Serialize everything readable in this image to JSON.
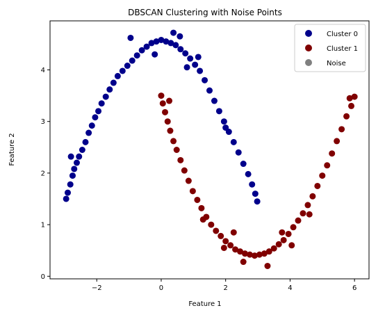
{
  "chart_data": {
    "type": "scatter",
    "title": "DBSCAN Clustering with Noise Points",
    "xlabel": "Feature 1",
    "ylabel": "Feature 2",
    "xlim": [
      -3.45,
      6.45
    ],
    "ylim": [
      -0.05,
      4.95
    ],
    "xticks": [
      -2,
      0,
      2,
      4,
      6
    ],
    "yticks": [
      0,
      1,
      2,
      3,
      4
    ],
    "grid": false,
    "legend_position": "top-right",
    "series": [
      {
        "name": "Cluster 0",
        "color": "#00008b",
        "shape": "upper-arc",
        "points": [
          [
            -2.95,
            1.5
          ],
          [
            -2.9,
            1.62
          ],
          [
            -2.82,
            1.78
          ],
          [
            -2.75,
            1.95
          ],
          [
            -2.7,
            2.08
          ],
          [
            -2.62,
            2.2
          ],
          [
            -2.55,
            2.32
          ],
          [
            -2.45,
            2.45
          ],
          [
            -2.35,
            2.6
          ],
          [
            -2.25,
            2.78
          ],
          [
            -2.15,
            2.92
          ],
          [
            -2.05,
            3.08
          ],
          [
            -1.95,
            3.2
          ],
          [
            -1.85,
            3.35
          ],
          [
            -1.72,
            3.48
          ],
          [
            -1.6,
            3.62
          ],
          [
            -1.48,
            3.75
          ],
          [
            -1.35,
            3.88
          ],
          [
            -1.2,
            3.98
          ],
          [
            -1.05,
            4.08
          ],
          [
            -0.9,
            4.18
          ],
          [
            -0.75,
            4.28
          ],
          [
            -0.6,
            4.38
          ],
          [
            -0.45,
            4.45
          ],
          [
            -0.3,
            4.52
          ],
          [
            -0.15,
            4.55
          ],
          [
            0.0,
            4.58
          ],
          [
            0.15,
            4.55
          ],
          [
            0.3,
            4.52
          ],
          [
            0.45,
            4.48
          ],
          [
            0.6,
            4.4
          ],
          [
            0.75,
            4.32
          ],
          [
            0.9,
            4.22
          ],
          [
            1.05,
            4.1
          ],
          [
            1.2,
            3.98
          ],
          [
            1.35,
            3.8
          ],
          [
            1.5,
            3.6
          ],
          [
            1.65,
            3.4
          ],
          [
            1.8,
            3.2
          ],
          [
            1.95,
            3.0
          ],
          [
            2.1,
            2.8
          ],
          [
            2.25,
            2.6
          ],
          [
            2.4,
            2.4
          ],
          [
            2.55,
            2.18
          ],
          [
            2.7,
            1.98
          ],
          [
            2.82,
            1.78
          ],
          [
            2.92,
            1.6
          ],
          [
            2.98,
            1.45
          ],
          [
            -0.95,
            4.62
          ],
          [
            0.38,
            4.72
          ],
          [
            0.58,
            4.65
          ],
          [
            -2.8,
            2.32
          ],
          [
            1.15,
            4.25
          ],
          [
            2.0,
            2.88
          ],
          [
            -0.2,
            4.3
          ],
          [
            0.8,
            4.05
          ]
        ]
      },
      {
        "name": "Cluster 1",
        "color": "#800000",
        "shape": "lower-arc",
        "points": [
          [
            0.0,
            3.5
          ],
          [
            0.05,
            3.35
          ],
          [
            0.12,
            3.18
          ],
          [
            0.2,
            3.0
          ],
          [
            0.28,
            2.82
          ],
          [
            0.38,
            2.62
          ],
          [
            0.48,
            2.45
          ],
          [
            0.6,
            2.25
          ],
          [
            0.72,
            2.05
          ],
          [
            0.85,
            1.85
          ],
          [
            0.98,
            1.65
          ],
          [
            1.12,
            1.48
          ],
          [
            1.25,
            1.32
          ],
          [
            1.4,
            1.15
          ],
          [
            1.55,
            1.0
          ],
          [
            1.7,
            0.88
          ],
          [
            1.85,
            0.78
          ],
          [
            2.0,
            0.68
          ],
          [
            2.15,
            0.6
          ],
          [
            2.3,
            0.52
          ],
          [
            2.45,
            0.48
          ],
          [
            2.6,
            0.44
          ],
          [
            2.75,
            0.42
          ],
          [
            2.9,
            0.4
          ],
          [
            3.05,
            0.42
          ],
          [
            3.2,
            0.44
          ],
          [
            3.35,
            0.48
          ],
          [
            3.5,
            0.54
          ],
          [
            3.65,
            0.62
          ],
          [
            3.8,
            0.7
          ],
          [
            3.95,
            0.82
          ],
          [
            4.1,
            0.95
          ],
          [
            4.25,
            1.08
          ],
          [
            4.4,
            1.22
          ],
          [
            4.55,
            1.38
          ],
          [
            4.7,
            1.55
          ],
          [
            4.85,
            1.75
          ],
          [
            5.0,
            1.95
          ],
          [
            5.15,
            2.15
          ],
          [
            5.3,
            2.38
          ],
          [
            5.45,
            2.62
          ],
          [
            5.6,
            2.85
          ],
          [
            5.75,
            3.1
          ],
          [
            5.9,
            3.3
          ],
          [
            6.0,
            3.48
          ],
          [
            1.95,
            0.55
          ],
          [
            3.3,
            0.2
          ],
          [
            0.25,
            3.4
          ],
          [
            2.55,
            0.28
          ],
          [
            4.05,
            0.6
          ],
          [
            5.85,
            3.45
          ],
          [
            1.3,
            1.1
          ],
          [
            3.75,
            0.85
          ],
          [
            2.25,
            0.85
          ],
          [
            4.6,
            1.2
          ]
        ]
      },
      {
        "name": "Noise",
        "color": "#808080",
        "points": []
      }
    ]
  }
}
